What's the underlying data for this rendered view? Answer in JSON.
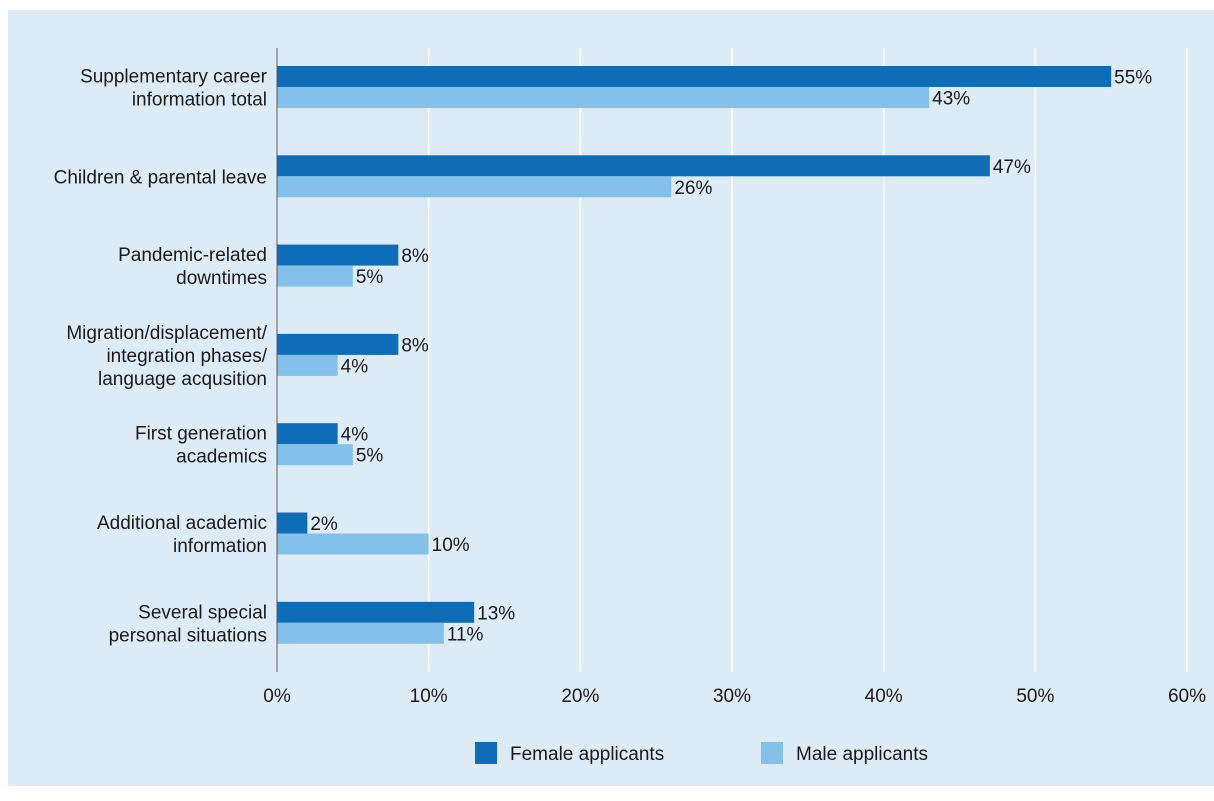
{
  "chart_data": {
    "type": "bar",
    "orientation": "horizontal",
    "categories": [
      [
        "Supplementary career",
        "information total"
      ],
      [
        "Children & parental leave"
      ],
      [
        "Pandemic-related",
        "downtimes"
      ],
      [
        "Migration/displacement/",
        "integration phases/",
        "language acqusition"
      ],
      [
        "First generation",
        "academics"
      ],
      [
        "Additional academic",
        "information"
      ],
      [
        "Several special",
        "personal situations"
      ]
    ],
    "series": [
      {
        "name": "Female applicants",
        "color": "#0f6db8",
        "values": [
          55,
          47,
          8,
          8,
          4,
          2,
          13
        ]
      },
      {
        "name": "Male applicants",
        "color": "#84c1ea",
        "values": [
          43,
          26,
          5,
          4,
          5,
          10,
          11
        ]
      }
    ],
    "value_suffix": "%",
    "xlim": [
      0,
      60
    ],
    "xticks": [
      0,
      10,
      20,
      30,
      40,
      50,
      60
    ],
    "xtick_labels": [
      "0%",
      "10%",
      "20%",
      "30%",
      "40%",
      "50%",
      "60%"
    ],
    "grid": true,
    "legend_position": "bottom"
  }
}
